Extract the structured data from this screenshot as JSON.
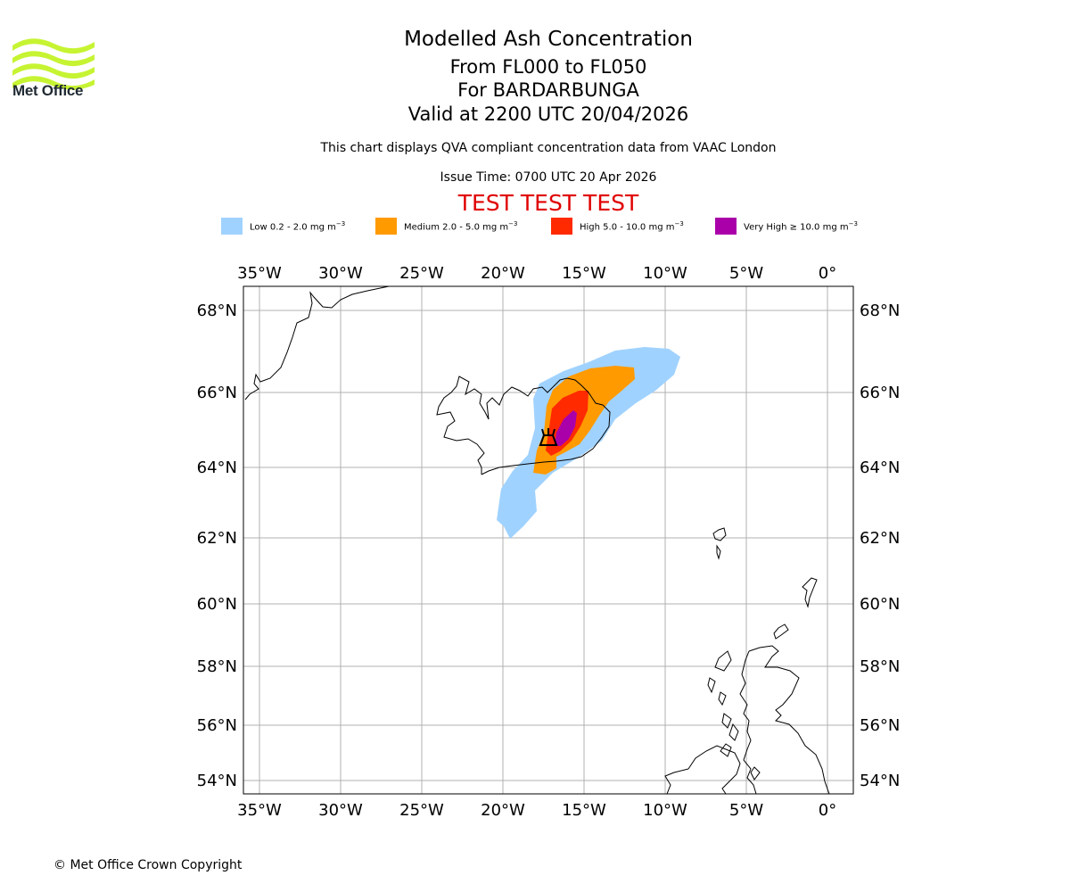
{
  "logo": {
    "text": "Met Office",
    "color": "#c6f432"
  },
  "header": {
    "title": "Modelled Ash Concentration",
    "levels": "From FL000 to FL050",
    "volcano": "For BARDARBUNGA",
    "valid": "Valid at 2200 UTC 20/04/2026",
    "note": "This chart displays QVA compliant concentration data from VAAC London",
    "issue": "Issue Time: 0700 UTC 20 Apr 2026",
    "test": "TEST TEST TEST"
  },
  "legend": [
    {
      "label": "Low 0.2 - 2.0 mg m",
      "sup": "−3",
      "color": "#a0d2ff"
    },
    {
      "label": "Medium 2.0 - 5.0 mg m",
      "sup": "−3",
      "color": "#ff9a00"
    },
    {
      "label": "High 5.0 - 10.0 mg m",
      "sup": "−3",
      "color": "#ff2a00"
    },
    {
      "label": "Very High  ≥  10.0 mg m",
      "sup": "−3",
      "color": "#aa00aa"
    }
  ],
  "map": {
    "lon_labels": [
      "35°W",
      "30°W",
      "25°W",
      "20°W",
      "15°W",
      "10°W",
      "5°W",
      "0°"
    ],
    "lat_labels": [
      "68°N",
      "66°N",
      "64°N",
      "62°N",
      "60°N",
      "58°N",
      "56°N",
      "54°N"
    ],
    "lon_values": [
      -35,
      -30,
      -25,
      -20,
      -15,
      -10,
      -5,
      0
    ],
    "lat_values": [
      68,
      66,
      64,
      62,
      60,
      58,
      56,
      54
    ],
    "volcano_icon": "volcano-icon"
  },
  "footer": {
    "copyright": "© Met Office Crown Copyright"
  }
}
